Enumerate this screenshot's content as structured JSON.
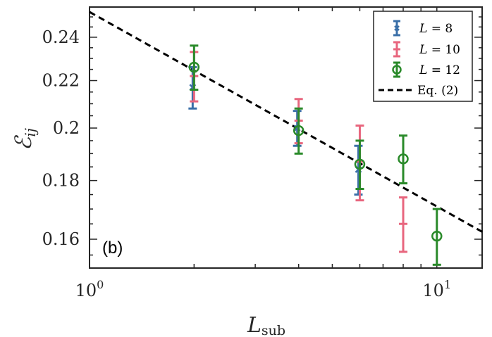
{
  "chart_data": {
    "type": "scatter",
    "xscale": "log",
    "yscale": "log",
    "xlim": [
      1,
      13.5
    ],
    "ylim": [
      0.151,
      0.255
    ],
    "xlabel": "L",
    "xlabel_sub": "sub",
    "ylabel": "ℰ",
    "ylabel_sub": "ij",
    "panel_label": "(b)",
    "xticks": [
      {
        "value": 1,
        "base": "10",
        "exp": "0"
      },
      {
        "value": 10,
        "base": "10",
        "exp": "1"
      }
    ],
    "yticks": [
      {
        "value": 0.16,
        "label": "0.16"
      },
      {
        "value": 0.18,
        "label": "0.18"
      },
      {
        "value": 0.2,
        "label": "0.2"
      },
      {
        "value": 0.22,
        "label": "0.22"
      },
      {
        "value": 0.24,
        "label": "0.24"
      }
    ],
    "series": [
      {
        "name": "L = 8",
        "name_var": "L",
        "name_eq": "= 8",
        "color": "#3a6fa8",
        "marker": "x",
        "x": [
          2,
          4,
          6
        ],
        "y": [
          0.217,
          0.2,
          0.184
        ],
        "yerr": [
          0.009,
          0.007,
          0.009
        ]
      },
      {
        "name": "L = 10",
        "name_var": "L",
        "name_eq": "= 10",
        "color": "#e8667e",
        "marker": "none",
        "x": [
          2,
          4,
          6,
          8
        ],
        "y": [
          0.222,
          0.203,
          0.187,
          0.165
        ],
        "yerr": [
          0.011,
          0.009,
          0.014,
          0.009
        ]
      },
      {
        "name": "L = 12",
        "name_var": "L",
        "name_eq": "= 12",
        "color": "#2a8a2a",
        "marker": "o",
        "x": [
          2,
          4,
          6,
          8,
          10
        ],
        "y": [
          0.226,
          0.199,
          0.186,
          0.188,
          0.161
        ],
        "yerr": [
          0.01,
          0.009,
          0.009,
          0.009,
          0.009
        ]
      }
    ],
    "fit_line": {
      "name": "Eq. (2)",
      "style": "dashed",
      "color": "#000000",
      "x": [
        1,
        13.5
      ],
      "y": [
        0.2525,
        0.1624
      ]
    }
  }
}
